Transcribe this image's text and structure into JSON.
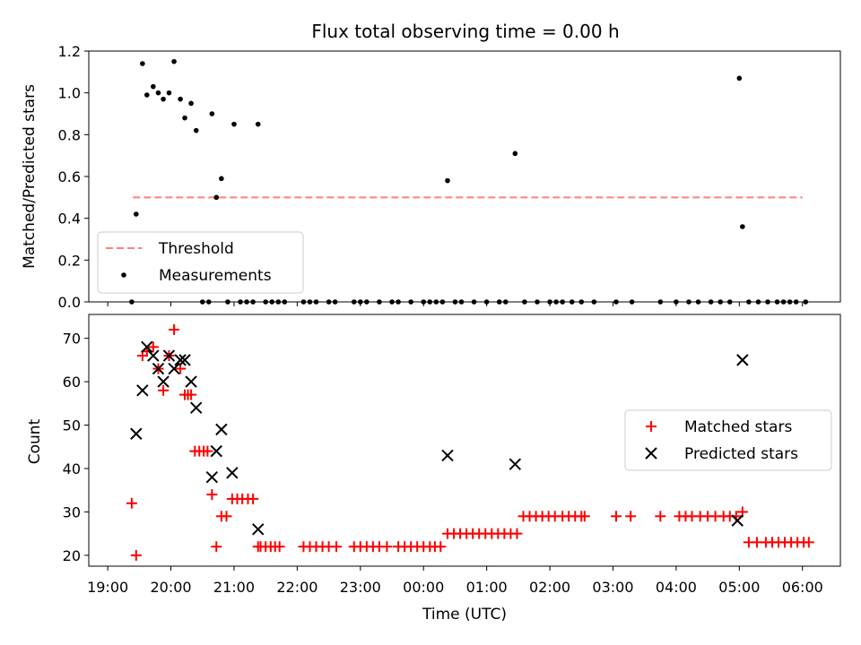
{
  "chart_data": [
    {
      "type": "scatter",
      "title": "Flux total observing time = 0.00 h",
      "ylabel": "Matched/Predicted stars",
      "ylim": [
        0,
        1.2
      ],
      "yticks": [
        "0.0",
        "0.2",
        "0.4",
        "0.6",
        "0.8",
        "1.0",
        "1.2"
      ],
      "legend_position": "lower-left",
      "threshold": {
        "name": "Threshold",
        "value": 0.5,
        "x_start": 19.4,
        "x_end": 30.0,
        "color": "#ff7f7f"
      },
      "series": [
        {
          "name": "Measurements",
          "color": "#000000",
          "x": [
            19.38,
            19.45,
            19.55,
            19.62,
            19.72,
            19.8,
            19.88,
            19.97,
            20.05,
            20.15,
            20.22,
            20.32,
            20.4,
            20.5,
            20.6,
            20.65,
            20.72,
            20.8,
            20.9,
            21.0,
            21.1,
            21.2,
            21.3,
            21.38,
            21.5,
            21.6,
            21.7,
            21.8,
            22.1,
            22.2,
            22.3,
            22.5,
            22.6,
            22.9,
            23.0,
            23.1,
            23.3,
            23.5,
            23.6,
            23.8,
            24.0,
            24.1,
            24.2,
            24.3,
            24.38,
            24.5,
            24.6,
            24.8,
            25.0,
            25.2,
            25.3,
            25.45,
            25.6,
            25.8,
            26.0,
            26.1,
            26.2,
            26.35,
            26.5,
            26.7,
            27.05,
            27.3,
            27.75,
            28.0,
            28.2,
            28.35,
            28.55,
            28.7,
            28.85,
            29.0,
            29.05,
            29.15,
            29.3,
            29.45,
            29.6,
            29.7,
            29.8,
            29.9,
            30.05
          ],
          "y": [
            0.0,
            0.42,
            1.14,
            0.99,
            1.03,
            1.0,
            0.97,
            1.0,
            1.15,
            0.97,
            0.88,
            0.95,
            0.82,
            0.0,
            0.0,
            0.9,
            0.5,
            0.59,
            0.0,
            0.85,
            0.0,
            0.0,
            0.0,
            0.85,
            0.0,
            0.0,
            0.0,
            0.0,
            0.0,
            0.0,
            0.0,
            0.0,
            0.0,
            0.0,
            0.0,
            0.0,
            0.0,
            0.0,
            0.0,
            0.0,
            0.0,
            0.0,
            0.0,
            0.0,
            0.58,
            0.0,
            0.0,
            0.0,
            0.0,
            0.0,
            0.0,
            0.71,
            0.0,
            0.0,
            0.0,
            0.0,
            0.0,
            0.0,
            0.0,
            0.0,
            0.0,
            0.0,
            0.0,
            0.0,
            0.0,
            0.0,
            0.0,
            0.0,
            0.0,
            1.07,
            0.36,
            0.0,
            0.0,
            0.0,
            0.0,
            0.0,
            0.0,
            0.0,
            0.0
          ]
        }
      ]
    },
    {
      "type": "scatter",
      "xlabel": "Time (UTC)",
      "ylabel": "Count",
      "ylim": [
        17.5,
        75.5
      ],
      "yticks": [
        "20",
        "30",
        "40",
        "50",
        "60",
        "70"
      ],
      "xticks": [
        "19:00",
        "20:00",
        "21:00",
        "22:00",
        "23:00",
        "00:00",
        "01:00",
        "02:00",
        "03:00",
        "04:00",
        "05:00",
        "06:00"
      ],
      "legend_position": "center-right",
      "series": [
        {
          "name": "Matched stars",
          "color": "#ff0000",
          "marker": "+",
          "x": [
            19.38,
            19.45,
            19.55,
            19.62,
            19.72,
            19.8,
            19.88,
            19.97,
            20.05,
            20.15,
            20.22,
            20.27,
            20.32,
            20.38,
            20.45,
            20.52,
            20.58,
            20.65,
            20.72,
            20.8,
            20.88,
            20.97,
            21.05,
            21.13,
            21.22,
            21.3,
            21.38,
            21.42,
            21.5,
            21.58,
            21.65,
            21.72,
            22.1,
            22.2,
            22.3,
            22.4,
            22.5,
            22.62,
            22.9,
            23.0,
            23.1,
            23.2,
            23.3,
            23.42,
            23.6,
            23.7,
            23.8,
            23.9,
            24.0,
            24.1,
            24.18,
            24.27,
            24.38,
            24.48,
            24.58,
            24.68,
            24.78,
            24.88,
            24.98,
            25.08,
            25.18,
            25.28,
            25.38,
            25.48,
            25.58,
            25.68,
            25.78,
            25.88,
            25.98,
            26.08,
            26.2,
            26.3,
            26.4,
            26.5,
            26.55,
            27.05,
            27.28,
            27.75,
            28.05,
            28.15,
            28.25,
            28.38,
            28.5,
            28.62,
            28.75,
            28.85,
            28.95,
            29.05,
            29.15,
            29.28,
            29.42,
            29.52,
            29.62,
            29.72,
            29.82,
            29.92,
            30.02,
            30.1
          ],
          "y": [
            32,
            20,
            66,
            67,
            68,
            63,
            58,
            66,
            72,
            63,
            57,
            57,
            57,
            44,
            44,
            44,
            44,
            34,
            22,
            29,
            29,
            33,
            33,
            33,
            33,
            33,
            22,
            22,
            22,
            22,
            22,
            22,
            22,
            22,
            22,
            22,
            22,
            22,
            22,
            22,
            22,
            22,
            22,
            22,
            22,
            22,
            22,
            22,
            22,
            22,
            22,
            22,
            25,
            25,
            25,
            25,
            25,
            25,
            25,
            25,
            25,
            25,
            25,
            25,
            29,
            29,
            29,
            29,
            29,
            29,
            29,
            29,
            29,
            29,
            29,
            29,
            29,
            29,
            29,
            29,
            29,
            29,
            29,
            29,
            29,
            29,
            29,
            30,
            23,
            23,
            23,
            23,
            23,
            23,
            23,
            23,
            23,
            23
          ]
        },
        {
          "name": "Predicted stars",
          "color": "#000000",
          "marker": "x",
          "x": [
            19.45,
            19.55,
            19.62,
            19.72,
            19.8,
            19.88,
            19.97,
            20.05,
            20.15,
            20.22,
            20.32,
            20.4,
            20.65,
            20.72,
            20.8,
            20.97,
            21.38,
            24.38,
            25.45,
            28.97,
            29.05
          ],
          "y": [
            48,
            58,
            68,
            66,
            63,
            60,
            66,
            63,
            65,
            65,
            60,
            54,
            38,
            44,
            49,
            39,
            26,
            43,
            41,
            28,
            65
          ]
        }
      ]
    }
  ]
}
